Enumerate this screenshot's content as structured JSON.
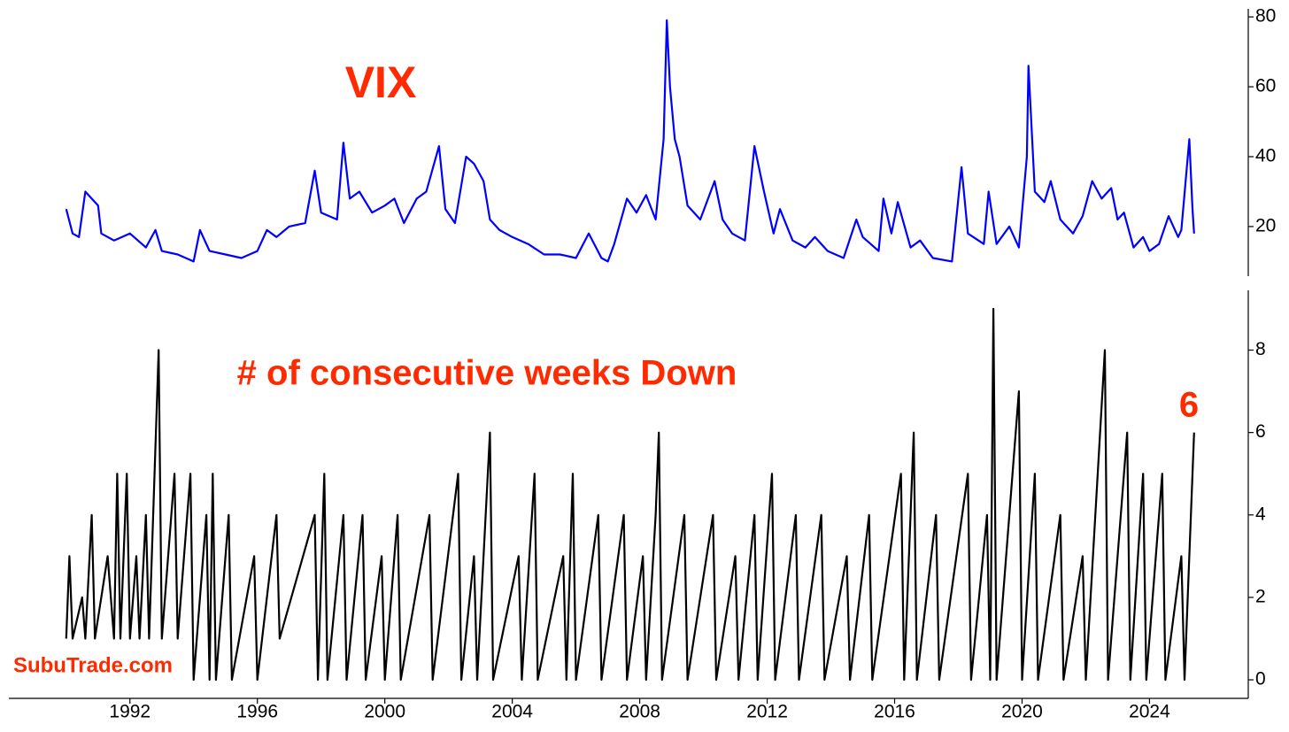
{
  "chart_data": [
    {
      "type": "line",
      "annotation": "VIX",
      "xlim": [
        1988.2,
        2027.1
      ],
      "ylim": [
        5.8,
        82.3
      ],
      "yticks": [
        20,
        40,
        60,
        80
      ],
      "series": [
        {
          "color": "#0000ff",
          "x": [
            1990.0,
            1990.2,
            1990.4,
            1990.6,
            1990.8,
            1991.0,
            1991.1,
            1991.5,
            1992.0,
            1992.5,
            1992.8,
            1993.0,
            1993.5,
            1994.0,
            1994.2,
            1994.5,
            1995.0,
            1995.5,
            1996.0,
            1996.3,
            1996.6,
            1997.0,
            1997.5,
            1997.8,
            1998.0,
            1998.5,
            1998.7,
            1998.9,
            1999.2,
            1999.6,
            2000.0,
            2000.3,
            2000.6,
            2001.0,
            2001.3,
            2001.7,
            2001.9,
            2002.2,
            2002.55,
            2002.8,
            2003.1,
            2003.3,
            2003.6,
            2004.0,
            2004.5,
            2005.0,
            2005.5,
            2006.0,
            2006.4,
            2006.8,
            2007.0,
            2007.2,
            2007.6,
            2007.9,
            2008.2,
            2008.5,
            2008.75,
            2008.85,
            2008.95,
            2009.0,
            2009.1,
            2009.25,
            2009.5,
            2009.9,
            2010.35,
            2010.6,
            2010.9,
            2011.3,
            2011.6,
            2011.9,
            2012.2,
            2012.4,
            2012.8,
            2013.2,
            2013.5,
            2013.9,
            2014.4,
            2014.8,
            2015.0,
            2015.5,
            2015.65,
            2015.9,
            2016.1,
            2016.5,
            2016.8,
            2017.2,
            2017.8,
            2018.1,
            2018.3,
            2018.8,
            2018.95,
            2019.2,
            2019.6,
            2019.9,
            2020.15,
            2020.2,
            2020.4,
            2020.7,
            2020.9,
            2021.2,
            2021.6,
            2021.9,
            2022.2,
            2022.5,
            2022.8,
            2023.0,
            2023.2,
            2023.5,
            2023.8,
            2024.0,
            2024.3,
            2024.6,
            2024.9,
            2025.0,
            2025.25,
            2025.35,
            2025.4
          ],
          "values": [
            25,
            18,
            17,
            30,
            28,
            26,
            18,
            16,
            18,
            14,
            19,
            13,
            12,
            10,
            19,
            13,
            12,
            11,
            13,
            19,
            17,
            20,
            21,
            36,
            24,
            22,
            44,
            28,
            30,
            24,
            26,
            28,
            21,
            28,
            30,
            43,
            25,
            21,
            40,
            38,
            33,
            22,
            19,
            17,
            15,
            12,
            12,
            11,
            18,
            11,
            10,
            15,
            28,
            24,
            29,
            22,
            45,
            79,
            60,
            55,
            45,
            40,
            26,
            22,
            33,
            22,
            18,
            16,
            43,
            30,
            18,
            25,
            16,
            14,
            17,
            13,
            11,
            22,
            17,
            13,
            28,
            18,
            27,
            14,
            16,
            11,
            10,
            37,
            18,
            15,
            30,
            15,
            20,
            14,
            40,
            66,
            30,
            27,
            33,
            22,
            18,
            23,
            33,
            28,
            31,
            22,
            24,
            14,
            17,
            13,
            15,
            23,
            17,
            19,
            45,
            25,
            18
          ]
        }
      ]
    },
    {
      "type": "line",
      "annotation": "# of consecutive weeks Down",
      "last_label": "6",
      "watermark": "SubuTrade.com",
      "xlim": [
        1988.2,
        2027.1
      ],
      "xticks": [
        1992,
        1996,
        2000,
        2004,
        2008,
        2012,
        2016,
        2020,
        2024
      ],
      "ylim": [
        -0.45,
        9.45
      ],
      "yticks": [
        0,
        2,
        4,
        6,
        8
      ],
      "series": [
        {
          "color": "#000000",
          "x": [
            1990.0,
            1990.1,
            1990.2,
            1990.5,
            1990.6,
            1990.8,
            1990.9,
            1991.3,
            1991.5,
            1991.6,
            1991.7,
            1991.9,
            1992.0,
            1992.2,
            1992.3,
            1992.5,
            1992.6,
            1992.9,
            1993.0,
            1993.4,
            1993.5,
            1993.9,
            1994.0,
            1994.4,
            1994.5,
            1994.6,
            1994.7,
            1995.1,
            1995.2,
            1995.9,
            1996.0,
            1996.6,
            1996.7,
            1997.8,
            1997.9,
            1998.1,
            1998.2,
            1998.7,
            1998.8,
            1999.3,
            1999.4,
            1999.9,
            2000.0,
            2000.4,
            2000.5,
            2001.4,
            2001.5,
            2002.3,
            2002.4,
            2002.8,
            2002.9,
            2003.3,
            2003.4,
            2004.2,
            2004.3,
            2004.7,
            2004.8,
            2005.6,
            2005.7,
            2005.9,
            2006.0,
            2006.7,
            2006.8,
            2007.5,
            2007.6,
            2008.1,
            2008.2,
            2008.5,
            2008.6,
            2008.7,
            2009.4,
            2009.5,
            2010.3,
            2010.4,
            2011.0,
            2011.1,
            2011.6,
            2011.7,
            2012.15,
            2012.25,
            2012.9,
            2013.0,
            2013.7,
            2013.8,
            2014.5,
            2014.6,
            2015.2,
            2015.3,
            2016.2,
            2016.3,
            2016.6,
            2016.7,
            2017.3,
            2017.4,
            2018.3,
            2018.4,
            2018.9,
            2019.0,
            2019.1,
            2019.2,
            2019.9,
            2020.0,
            2020.4,
            2020.5,
            2021.2,
            2021.3,
            2021.9,
            2022.0,
            2022.6,
            2022.7,
            2023.3,
            2023.4,
            2023.8,
            2023.9,
            2024.4,
            2024.5,
            2025.0,
            2025.1,
            2025.4
          ],
          "values": [
            1,
            3,
            1,
            2,
            1,
            4,
            1,
            3,
            1,
            5,
            1,
            5,
            1,
            3,
            1,
            4,
            1,
            8,
            1,
            5,
            1,
            5,
            0,
            4,
            0,
            5,
            0,
            4,
            0,
            3,
            0,
            4,
            1,
            4,
            0,
            5,
            0,
            4,
            0,
            4,
            0,
            3,
            0,
            4,
            0,
            4,
            0,
            5,
            0,
            3,
            0,
            6,
            0,
            3,
            0,
            5,
            0,
            3,
            0,
            5,
            0,
            4,
            0,
            4,
            0,
            3,
            0,
            4,
            6,
            0,
            4,
            0,
            4,
            0,
            3,
            0,
            4,
            0,
            5,
            0,
            4,
            0,
            4,
            0,
            3,
            0,
            4,
            0,
            5,
            0,
            6,
            0,
            4,
            0,
            5,
            0,
            4,
            0,
            9,
            0,
            7,
            0,
            5,
            0,
            4,
            0,
            3,
            0,
            8,
            0,
            6,
            0,
            5,
            0,
            5,
            0,
            3,
            0,
            6
          ]
        }
      ]
    }
  ]
}
